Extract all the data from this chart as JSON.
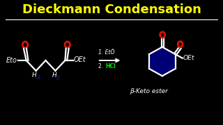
{
  "title": "Dieckmann Condensation",
  "title_color": "#FFFF00",
  "background_color": "#000000",
  "line_color": "#FFFFFF",
  "red_color": "#DD1100",
  "green_color": "#00EE00",
  "blue_color": "#1111CC",
  "subtitle": "β-Keto ester",
  "reagent1": "1. EtO",
  "reagent2": "2. HCl",
  "ring_fill": "#00008B"
}
